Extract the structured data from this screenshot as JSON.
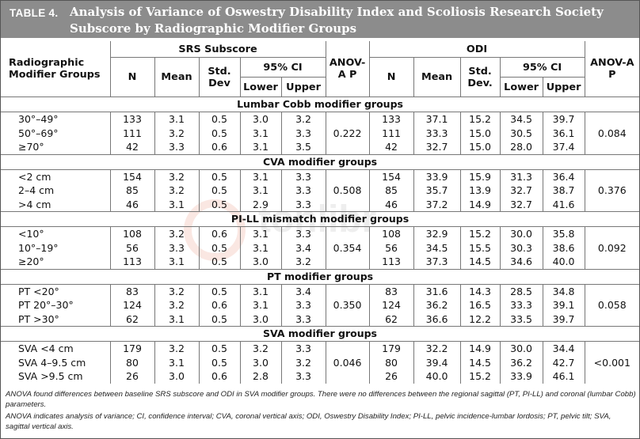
{
  "title": {
    "label": "TABLE 4.",
    "text": "Analysis of Variance of Oswestry Disability Index and Scoliosis Research Society Subscore by Radiographic Modifier Groups"
  },
  "headers": {
    "group_col": "Radiographic Modifier Groups",
    "srs": "SRS Subscore",
    "odi": "ODI",
    "n": "N",
    "mean": "Mean",
    "std_srs": "Std. Dev",
    "std_odi": "Std. Dev.",
    "ci": "95% CI",
    "lower": "Lower",
    "upper": "Upper",
    "anova": "ANOV-A P",
    "anova_odi": "ANOV-A P"
  },
  "groups": [
    {
      "name": "Lumbar Cobb modifier groups",
      "srs_p": "0.222",
      "odi_p": "0.084",
      "rows": [
        {
          "label": "30°–49°",
          "srs": [
            "133",
            "3.1",
            "0.5",
            "3.0",
            "3.2"
          ],
          "odi": [
            "133",
            "37.1",
            "15.2",
            "34.5",
            "39.7"
          ]
        },
        {
          "label": "50°–69°",
          "srs": [
            "111",
            "3.2",
            "0.5",
            "3.1",
            "3.3"
          ],
          "odi": [
            "111",
            "33.3",
            "15.0",
            "30.5",
            "36.1"
          ]
        },
        {
          "label": "≥70°",
          "srs": [
            "42",
            "3.3",
            "0.6",
            "3.1",
            "3.5"
          ],
          "odi": [
            "42",
            "32.7",
            "15.0",
            "28.0",
            "37.4"
          ]
        }
      ]
    },
    {
      "name": "CVA modifier groups",
      "srs_p": "0.508",
      "odi_p": "0.376",
      "rows": [
        {
          "label": "<2 cm",
          "srs": [
            "154",
            "3.2",
            "0.5",
            "3.1",
            "3.3"
          ],
          "odi": [
            "154",
            "33.9",
            "15.9",
            "31.3",
            "36.4"
          ]
        },
        {
          "label": "2–4 cm",
          "srs": [
            "85",
            "3.2",
            "0.5",
            "3.1",
            "3.3"
          ],
          "odi": [
            "85",
            "35.7",
            "13.9",
            "32.7",
            "38.7"
          ]
        },
        {
          "label": ">4 cm",
          "srs": [
            "46",
            "3.1",
            "0.5",
            "2.9",
            "3.3"
          ],
          "odi": [
            "46",
            "37.2",
            "14.9",
            "32.7",
            "41.6"
          ]
        }
      ]
    },
    {
      "name": "PI-LL mismatch modifier groups",
      "srs_p": "0.354",
      "odi_p": "0.092",
      "rows": [
        {
          "label": "<10°",
          "srs": [
            "108",
            "3.2",
            "0.6",
            "3.1",
            "3.3"
          ],
          "odi": [
            "108",
            "32.9",
            "15.2",
            "30.0",
            "35.8"
          ]
        },
        {
          "label": "10°–19°",
          "srs": [
            "56",
            "3.3",
            "0.5",
            "3.1",
            "3.4"
          ],
          "odi": [
            "56",
            "34.5",
            "15.5",
            "30.3",
            "38.6"
          ]
        },
        {
          "label": "≥20°",
          "srs": [
            "113",
            "3.1",
            "0.5",
            "3.0",
            "3.2"
          ],
          "odi": [
            "113",
            "37.3",
            "14.5",
            "34.6",
            "40.0"
          ]
        }
      ]
    },
    {
      "name": "PT modifier groups",
      "srs_p": "0.350",
      "odi_p": "0.058",
      "rows": [
        {
          "label": "PT <20°",
          "srs": [
            "83",
            "3.2",
            "0.5",
            "3.1",
            "3.4"
          ],
          "odi": [
            "83",
            "31.6",
            "14.3",
            "28.5",
            "34.8"
          ]
        },
        {
          "label": "PT 20°–30°",
          "srs": [
            "124",
            "3.2",
            "0.6",
            "3.1",
            "3.3"
          ],
          "odi": [
            "124",
            "36.2",
            "16.5",
            "33.3",
            "39.1"
          ]
        },
        {
          "label": "PT >30°",
          "srs": [
            "62",
            "3.1",
            "0.5",
            "3.0",
            "3.3"
          ],
          "odi": [
            "62",
            "36.6",
            "12.2",
            "33.5",
            "39.7"
          ]
        }
      ]
    },
    {
      "name": "SVA modifier groups",
      "srs_p": "0.046",
      "odi_p": "<0.001",
      "rows": [
        {
          "label": "SVA <4 cm",
          "srs": [
            "179",
            "3.2",
            "0.5",
            "3.2",
            "3.3"
          ],
          "odi": [
            "179",
            "32.2",
            "14.9",
            "30.0",
            "34.4"
          ]
        },
        {
          "label": "SVA 4–9.5 cm",
          "srs": [
            "80",
            "3.1",
            "0.5",
            "3.0",
            "3.2"
          ],
          "odi": [
            "80",
            "39.4",
            "14.5",
            "36.2",
            "42.7"
          ]
        },
        {
          "label": "SVA >9.5 cm",
          "srs": [
            "26",
            "3.0",
            "0.6",
            "2.8",
            "3.3"
          ],
          "odi": [
            "26",
            "40.0",
            "15.2",
            "33.9",
            "46.1"
          ]
        }
      ]
    }
  ],
  "footnotes": [
    "ANOVA found differences between baseline SRS subscore and ODI in SVA modifier groups. There were no differences between the regional sagittal (PT, PI-LL) and coronal (lumbar Cobb) parameters.",
    "ANOVA indicates analysis of variance; CI, confidence interval; CVA, coronal vertical axis; ODI, Oswestry Disability Index; PI-LL, pelvic incidence-lumbar lordosis; PT, pelvic tilt; SVA, sagittal vertical axis."
  ]
}
